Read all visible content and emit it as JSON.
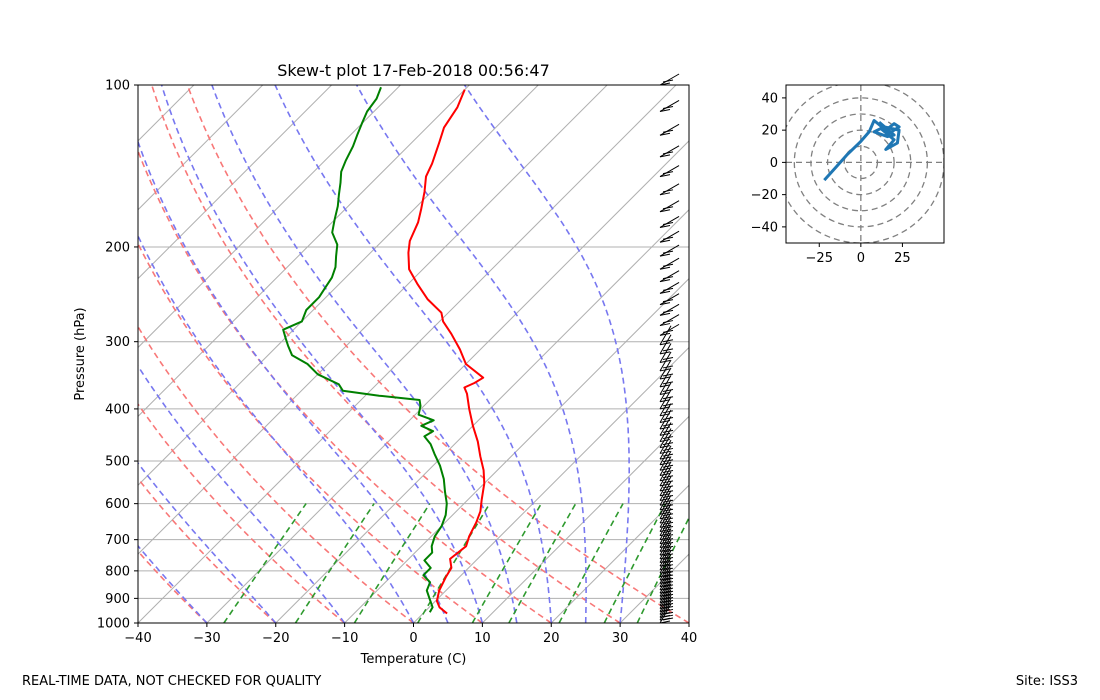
{
  "chart_data": [
    {
      "type": "skew-t",
      "title": "Skew-t plot 17-Feb-2018 00:56:47",
      "xlabel": "Temperature (C)",
      "ylabel": "Pressure (hPa)",
      "xlim": [
        -40,
        40
      ],
      "ylim": [
        1000,
        100
      ],
      "log_y": true,
      "x_ticks": [
        -40,
        -30,
        -20,
        -10,
        0,
        10,
        20,
        30,
        40
      ],
      "y_ticks": [
        100,
        200,
        300,
        400,
        500,
        600,
        700,
        800,
        900,
        1000
      ],
      "grid": true,
      "dry_adiabats_C": [
        -30,
        -20,
        -10,
        0,
        10,
        20,
        30,
        40
      ],
      "moist_adiabats_C": [
        -30,
        -20,
        -10,
        0,
        5,
        10,
        15,
        20,
        25,
        30
      ],
      "mixing_ratio_lines_gkg": [
        0.4,
        1,
        2,
        4,
        7,
        10,
        16,
        24,
        32
      ],
      "series": [
        {
          "name": "Temperature",
          "color": "#ff0000",
          "points": [
            [
              3.5,
              960
            ],
            [
              1.5,
              935
            ],
            [
              0.2,
              910
            ],
            [
              -1.0,
              870
            ],
            [
              -2.0,
              820
            ],
            [
              -2.5,
              790
            ],
            [
              -4.0,
              760
            ],
            [
              -3.5,
              720
            ],
            [
              -4.5,
              690
            ],
            [
              -5.5,
              650
            ],
            [
              -6.5,
              620
            ],
            [
              -8.0,
              590
            ],
            [
              -10.0,
              550
            ],
            [
              -12.0,
              520
            ],
            [
              -14.5,
              490
            ],
            [
              -17.0,
              460
            ],
            [
              -20.0,
              430
            ],
            [
              -23.0,
              400
            ],
            [
              -25.5,
              375
            ],
            [
              -26.8,
              365
            ],
            [
              -26.0,
              358
            ],
            [
              -25.5,
              350
            ],
            [
              -30.0,
              330
            ],
            [
              -33.0,
              310
            ],
            [
              -36.5,
              290
            ],
            [
              -39.5,
              275
            ],
            [
              -41.0,
              265
            ],
            [
              -45.0,
              250
            ],
            [
              -48.5,
              235
            ],
            [
              -52.0,
              220
            ],
            [
              -54.5,
              205
            ],
            [
              -56.0,
              195
            ],
            [
              -57.5,
              180
            ],
            [
              -59.0,
              170
            ],
            [
              -61.0,
              158
            ],
            [
              -63.0,
              148
            ],
            [
              -64.0,
              140
            ],
            [
              -66.0,
              128
            ],
            [
              -67.5,
              120
            ],
            [
              -68.5,
              110
            ],
            [
              -70.0,
              102
            ]
          ]
        },
        {
          "name": "Dewpoint",
          "color": "#008000",
          "points": [
            [
              0.8,
              955
            ],
            [
              0.5,
              935
            ],
            [
              -1.0,
              905
            ],
            [
              -2.8,
              870
            ],
            [
              -3.5,
              840
            ],
            [
              -5.5,
              815
            ],
            [
              -5.5,
              790
            ],
            [
              -7.5,
              765
            ],
            [
              -7.5,
              740
            ],
            [
              -8.5,
              720
            ],
            [
              -9.5,
              690
            ],
            [
              -10.0,
              660
            ],
            [
              -11.0,
              630
            ],
            [
              -12.5,
              600
            ],
            [
              -14.5,
              570
            ],
            [
              -16.5,
              540
            ],
            [
              -19.0,
              510
            ],
            [
              -21.5,
              485
            ],
            [
              -23.5,
              465
            ],
            [
              -25.5,
              450
            ],
            [
              -25.0,
              440
            ],
            [
              -27.5,
              430
            ],
            [
              -26.5,
              420
            ],
            [
              -29.5,
              410
            ],
            [
              -30.5,
              395
            ],
            [
              -31.5,
              385
            ],
            [
              -38.0,
              378
            ],
            [
              -44.0,
              370
            ],
            [
              -45.5,
              360
            ],
            [
              -50.0,
              345
            ],
            [
              -53.0,
              330
            ],
            [
              -56.5,
              318
            ],
            [
              -58.5,
              305
            ],
            [
              -60.0,
              295
            ],
            [
              -61.5,
              285
            ],
            [
              -60.0,
              275
            ],
            [
              -61.0,
              262
            ],
            [
              -61.0,
              248
            ],
            [
              -61.5,
              238
            ],
            [
              -62.0,
              228
            ],
            [
              -63.0,
              218
            ],
            [
              -64.5,
              208
            ],
            [
              -66.0,
              198
            ],
            [
              -68.5,
              188
            ],
            [
              -70.0,
              178
            ],
            [
              -71.5,
              168
            ],
            [
              -73.0,
              160
            ],
            [
              -74.5,
              152
            ],
            [
              -76.0,
              145
            ],
            [
              -77.0,
              138
            ],
            [
              -78.0,
              130
            ],
            [
              -79.0,
              124
            ],
            [
              -80.0,
              118
            ],
            [
              -81.0,
              112
            ],
            [
              -81.5,
              106
            ],
            [
              -82.5,
              101
            ]
          ]
        }
      ]
    },
    {
      "type": "hodograph",
      "xlim": [
        -45,
        50
      ],
      "ylim": [
        -50,
        48
      ],
      "x_ticks": [
        -25,
        0,
        25
      ],
      "y_ticks": [
        -40,
        -20,
        0,
        20,
        40
      ],
      "rings": [
        10,
        20,
        30,
        40,
        50
      ],
      "series": [
        {
          "name": "Wind",
          "color": "#1f77b4",
          "points": [
            [
              -22,
              -11
            ],
            [
              -15,
              -3
            ],
            [
              -8,
              5
            ],
            [
              0,
              13
            ],
            [
              5,
              19
            ],
            [
              8,
              26
            ],
            [
              15,
              20
            ],
            [
              20,
              24
            ],
            [
              23,
              22
            ],
            [
              17,
              18
            ],
            [
              12,
              21
            ],
            [
              20,
              14
            ],
            [
              15,
              8
            ],
            [
              22,
              12
            ],
            [
              23,
              20
            ],
            [
              14,
              22
            ],
            [
              8,
              19
            ],
            [
              16,
              16
            ],
            [
              20,
              17
            ],
            [
              11,
              25
            ]
          ]
        }
      ]
    }
  ],
  "footer": {
    "left": "REAL-TIME DATA, NOT CHECKED FOR QUALITY",
    "right": "Site: ISS3"
  }
}
